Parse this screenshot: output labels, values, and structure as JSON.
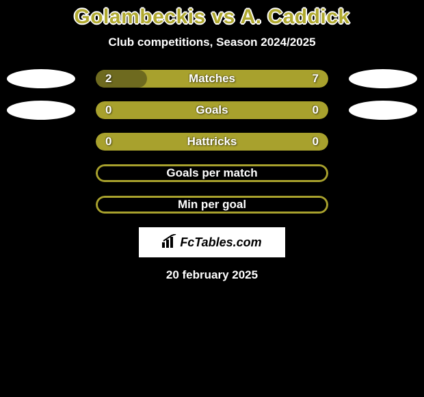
{
  "header": {
    "title": "Golambeckis vs A. Caddick",
    "subtitle": "Club competitions, Season 2024/2025"
  },
  "colors": {
    "olive": "#a8a12d",
    "olive_dark": "#6e6a1f",
    "black": "#000000",
    "white": "#ffffff"
  },
  "bars": [
    {
      "label": "Matches",
      "left_value": "2",
      "right_value": "7",
      "left_numeric": 2,
      "right_numeric": 7,
      "show_values": true,
      "show_left_oval": true,
      "show_right_oval": true,
      "render": "split",
      "bg_color": "#a8a12d",
      "left_fill_color": "#6e6a1f",
      "left_fill_pct": 22
    },
    {
      "label": "Goals",
      "left_value": "0",
      "right_value": "0",
      "left_numeric": 0,
      "right_numeric": 0,
      "show_values": true,
      "show_left_oval": true,
      "show_right_oval": true,
      "render": "solid",
      "bg_color": "#a8a12d"
    },
    {
      "label": "Hattricks",
      "left_value": "0",
      "right_value": "0",
      "left_numeric": 0,
      "right_numeric": 0,
      "show_values": true,
      "show_left_oval": false,
      "show_right_oval": false,
      "render": "solid",
      "bg_color": "#a8a12d"
    },
    {
      "label": "Goals per match",
      "left_value": "",
      "right_value": "",
      "show_values": false,
      "show_left_oval": false,
      "show_right_oval": false,
      "render": "outline",
      "outline_color": "#a8a12d",
      "fill_color": "#000000"
    },
    {
      "label": "Min per goal",
      "left_value": "",
      "right_value": "",
      "show_values": false,
      "show_left_oval": false,
      "show_right_oval": false,
      "render": "outline",
      "outline_color": "#a8a12d",
      "fill_color": "#000000"
    }
  ],
  "badge": {
    "text": "FcTables.com"
  },
  "footer": {
    "date": "20 february 2025"
  }
}
